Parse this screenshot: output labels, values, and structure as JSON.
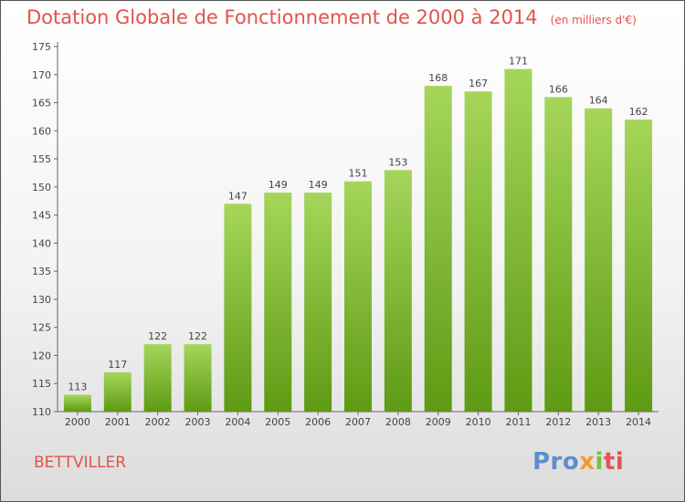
{
  "title": "Dotation Globale de Fonctionnement de 2000 à 2014",
  "subtitle": "(en milliers d'€)",
  "commune": "BETTVILLER",
  "logo": {
    "p1": "Pro",
    "p2": "x",
    "p3": "i",
    "p4": "ti"
  },
  "colors": {
    "bar_light": "#a5d65a",
    "bar_dark": "#5e9a14",
    "title": "#e2534b"
  },
  "chart_data": {
    "type": "bar",
    "title": "Dotation Globale de Fonctionnement de 2000 à 2014",
    "subtitle": "(en milliers d'€)",
    "categories": [
      "2000",
      "2001",
      "2002",
      "2003",
      "2004",
      "2005",
      "2006",
      "2007",
      "2008",
      "2009",
      "2010",
      "2011",
      "2012",
      "2013",
      "2014"
    ],
    "values": [
      113,
      117,
      122,
      122,
      147,
      149,
      149,
      151,
      153,
      168,
      167,
      171,
      166,
      164,
      162
    ],
    "ylim": [
      110,
      175
    ],
    "yticks": [
      110,
      115,
      120,
      125,
      130,
      135,
      140,
      145,
      150,
      155,
      160,
      165,
      170,
      175
    ],
    "grid": false,
    "data_labels": true
  }
}
